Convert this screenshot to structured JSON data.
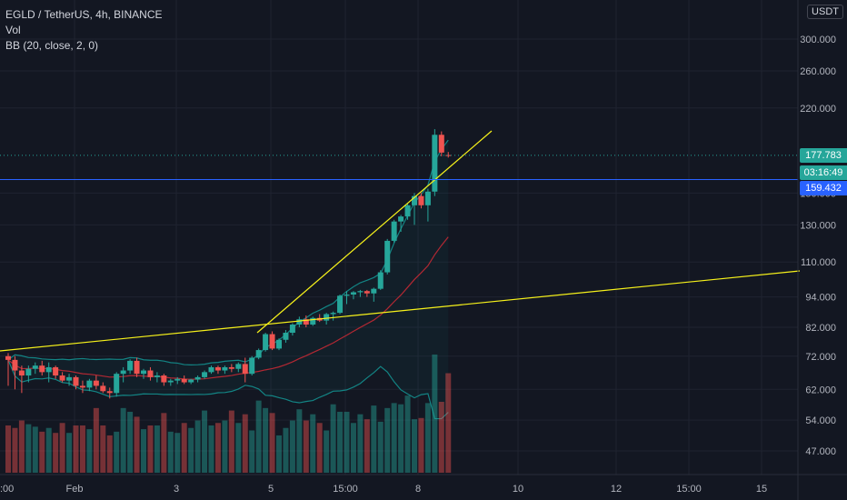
{
  "header": {
    "symbol": "EGLD / TetherUS, 4h, BINANCE",
    "vol_label": "Vol",
    "bb_label": "BB (20, close, 2, 0)",
    "currency": "USDT"
  },
  "tags": {
    "last_price": "177.783",
    "countdown": "03:16:49",
    "line_price": "159.432"
  },
  "colors": {
    "background": "#131722",
    "up": "#26a69a",
    "down": "#ef5350",
    "trendline": "#f7f21a",
    "hline": "#2962ff",
    "bb_basis": "#b22833",
    "bb_band": "#138484"
  },
  "chart_data": {
    "type": "candlestick",
    "y_axis": {
      "scale": "log",
      "ticks": [
        "300.000",
        "260.000",
        "220.000",
        "150.000",
        "130.000",
        "110.000",
        "94.000",
        "82.000",
        "72.000",
        "62.000",
        "54.000",
        "47.000"
      ]
    },
    "x_axis": {
      "ticks": [
        "Feb",
        "3",
        "5",
        "15:00",
        "8",
        "10",
        "12",
        "15:00",
        "15"
      ]
    },
    "last_price": 177.783,
    "horizontal_line": 159.432,
    "candles": [
      [
        72.0,
        73.0,
        63.0,
        70.8
      ],
      [
        70.8,
        72.0,
        62.0,
        67.5
      ],
      [
        67.5,
        69.0,
        61.0,
        66.0
      ],
      [
        66.0,
        69.0,
        64.0,
        68.0
      ],
      [
        68.0,
        70.0,
        66.5,
        69.0
      ],
      [
        69.0,
        70.5,
        66.0,
        67.0
      ],
      [
        67.0,
        70.0,
        64.0,
        68.5
      ],
      [
        68.5,
        69.0,
        65.0,
        66.0
      ],
      [
        66.0,
        67.0,
        64.0,
        64.5
      ],
      [
        64.5,
        66.5,
        63.0,
        65.5
      ],
      [
        65.5,
        66.0,
        62.0,
        63.0
      ],
      [
        63.0,
        64.5,
        61.0,
        62.5
      ],
      [
        62.5,
        65.0,
        61.5,
        64.5
      ],
      [
        64.5,
        66.0,
        62.0,
        63.0
      ],
      [
        63.0,
        64.0,
        61.0,
        61.5
      ],
      [
        61.5,
        62.5,
        59.5,
        61.0
      ],
      [
        61.0,
        67.0,
        60.0,
        66.5
      ],
      [
        66.5,
        68.5,
        64.0,
        67.5
      ],
      [
        67.5,
        71.0,
        66.5,
        70.5
      ],
      [
        70.5,
        71.5,
        65.5,
        66.5
      ],
      [
        66.5,
        68.0,
        65.0,
        67.5
      ],
      [
        67.5,
        68.5,
        64.5,
        65.5
      ],
      [
        65.5,
        67.0,
        64.0,
        66.0
      ],
      [
        66.0,
        66.5,
        63.0,
        64.0
      ],
      [
        64.0,
        65.0,
        63.0,
        64.5
      ],
      [
        64.5,
        65.5,
        63.5,
        65.0
      ],
      [
        65.0,
        66.0,
        63.5,
        64.0
      ],
      [
        64.0,
        65.0,
        63.5,
        64.8
      ],
      [
        64.8,
        66.0,
        64.0,
        65.5
      ],
      [
        65.5,
        67.5,
        65.0,
        67.0
      ],
      [
        67.0,
        69.0,
        66.5,
        68.5
      ],
      [
        68.5,
        69.0,
        66.5,
        67.5
      ],
      [
        67.5,
        69.0,
        66.5,
        68.5
      ],
      [
        68.5,
        69.5,
        67.0,
        68.0
      ],
      [
        68.0,
        70.0,
        67.0,
        69.5
      ],
      [
        69.5,
        71.5,
        64.0,
        66.5
      ],
      [
        66.5,
        72.0,
        66.0,
        71.5
      ],
      [
        71.5,
        74.5,
        71.0,
        74.0
      ],
      [
        74.0,
        80.0,
        73.5,
        79.5
      ],
      [
        79.5,
        80.5,
        74.0,
        74.5
      ],
      [
        74.5,
        78.0,
        74.0,
        77.5
      ],
      [
        77.5,
        81.0,
        76.5,
        80.0
      ],
      [
        80.0,
        83.5,
        79.0,
        83.0
      ],
      [
        83.0,
        86.0,
        82.0,
        85.0
      ],
      [
        85.0,
        86.5,
        82.0,
        83.0
      ],
      [
        83.0,
        86.0,
        82.5,
        85.5
      ],
      [
        85.5,
        87.0,
        84.0,
        84.5
      ],
      [
        84.5,
        87.5,
        83.0,
        87.0
      ],
      [
        87.0,
        88.0,
        84.5,
        87.5
      ],
      [
        87.5,
        95.0,
        87.0,
        94.5
      ],
      [
        94.5,
        96.5,
        91.0,
        95.0
      ],
      [
        95.0,
        96.5,
        93.0,
        96.0
      ],
      [
        96.0,
        97.0,
        94.0,
        96.5
      ],
      [
        96.5,
        97.0,
        94.0,
        95.5
      ],
      [
        95.5,
        98.0,
        92.0,
        97.5
      ],
      [
        97.5,
        106.0,
        97.0,
        105.0
      ],
      [
        105.0,
        122.0,
        104.0,
        121.0
      ],
      [
        121.0,
        133.0,
        120.0,
        132.0
      ],
      [
        132.0,
        136.0,
        126.0,
        135.0
      ],
      [
        135.0,
        143.0,
        133.0,
        142.0
      ],
      [
        142.0,
        150.0,
        130.0,
        148.0
      ],
      [
        148.0,
        150.0,
        140.0,
        142.0
      ],
      [
        142.0,
        153.0,
        132.0,
        151.0
      ],
      [
        151.0,
        200.0,
        148.0,
        195.0
      ],
      [
        195.0,
        198.0,
        177.0,
        180.0
      ],
      [
        178.0,
        180.5,
        176.0,
        177.783
      ]
    ],
    "volume": [
      38,
      36,
      42,
      39,
      37,
      33,
      36,
      32,
      40,
      32,
      38,
      38,
      35,
      52,
      38,
      30,
      33,
      52,
      49,
      45,
      35,
      38,
      38,
      48,
      33,
      32,
      40,
      36,
      42,
      50,
      38,
      40,
      42,
      50,
      40,
      47,
      34,
      58,
      52,
      48,
      30,
      36,
      42,
      51,
      42,
      47,
      40,
      34,
      55,
      49,
      49,
      40,
      47,
      43,
      54,
      41,
      52,
      56,
      55,
      62,
      43,
      44,
      56,
      95,
      57,
      80
    ],
    "bb": {
      "length": 20,
      "source": "close",
      "mult": 2,
      "offset": 0
    }
  }
}
